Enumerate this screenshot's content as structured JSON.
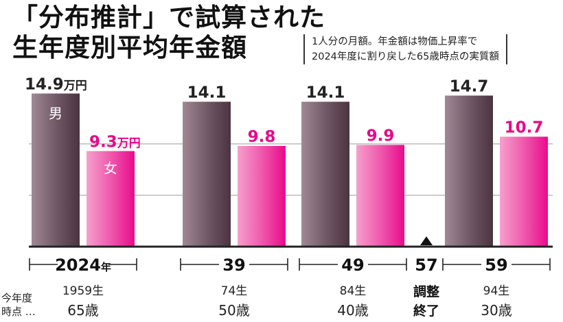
{
  "title": {
    "line1": "「分布推計」で試算された",
    "line2": "生年度別平均年金額"
  },
  "note": {
    "line1": "1人分の月額。年金額は物価上昇率で",
    "line2": "2024年度に割り戻した65歳時点の実質額"
  },
  "colors": {
    "male_dark": "#4b3340",
    "male_light": "#a08894",
    "female_dark": "#ea0a8c",
    "female_light": "#f6a0cd",
    "female_label": "#e8088a",
    "axis": "#222222"
  },
  "chart_data": {
    "type": "bar",
    "unit": "万円",
    "ylim": [
      0,
      15
    ],
    "grid_lines": [
      5,
      10
    ],
    "series_labels": {
      "male": "男",
      "female": "女"
    },
    "groups": [
      {
        "year": "2024",
        "year_suffix": "年",
        "male": 14.9,
        "female": 9.3,
        "male_label": "14.9",
        "female_label": "9.3",
        "unit_on_labels": true,
        "born": "1959生",
        "age": "65歳"
      },
      {
        "year": "39",
        "year_suffix": "",
        "male": 14.1,
        "female": 9.8,
        "male_label": "14.1",
        "female_label": "9.8",
        "unit_on_labels": false,
        "born": "74生",
        "age": "50歳"
      },
      {
        "year": "49",
        "year_suffix": "",
        "male": 14.1,
        "female": 9.9,
        "male_label": "14.1",
        "female_label": "9.9",
        "unit_on_labels": false,
        "born": "84生",
        "age": "40歳"
      },
      {
        "year": "59",
        "year_suffix": "",
        "male": 14.7,
        "female": 10.7,
        "male_label": "14.7",
        "female_label": "10.7",
        "unit_on_labels": false,
        "born": "94生",
        "age": "30歳"
      }
    ],
    "marker": {
      "year": "57",
      "label_line1": "調整",
      "label_line2": "終了"
    },
    "left_label": {
      "line1": "今年度",
      "line2": "時点 …"
    }
  }
}
